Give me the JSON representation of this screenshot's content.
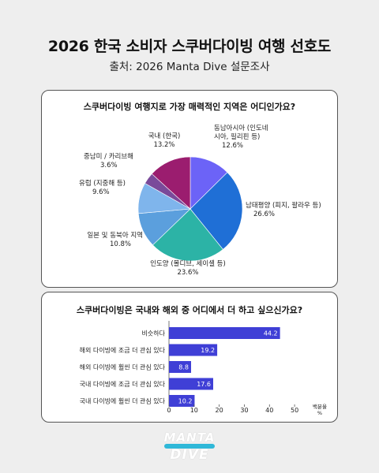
{
  "header": {
    "title": "2026 한국 소비자 스쿠버다이빙 여행 선호도",
    "subtitle": "출처: 2026 Manta Dive 설문조사"
  },
  "logo": {
    "top": "MANTA",
    "bottom": "DIVE"
  },
  "chart_data": [
    {
      "type": "pie",
      "title": "스쿠버다이빙 여행지로 가장 매력적인 지역은 어디인가요?",
      "slices": [
        {
          "label": "동남아시아 (인도네시아, 필리핀 등)",
          "display_label": [
            "동남아시아 (인도네",
            "시아, 필리핀 등)"
          ],
          "value": 12.6,
          "value_text": "12.6%",
          "color": "#6c63f7"
        },
        {
          "label": "남태평양 (피지, 팔라우 등)",
          "display_label": [
            "남태평양 (피지, 팔라우 등)"
          ],
          "value": 26.6,
          "value_text": "26.6%",
          "color": "#1f6fd6"
        },
        {
          "label": "인도양 (몰디브, 세이셸 등)",
          "display_label": [
            "인도양 (몰디브, 세이셸 등)"
          ],
          "value": 23.6,
          "value_text": "23.6%",
          "color": "#2cb3a6"
        },
        {
          "label": "일본 및 동북아 지역",
          "display_label": [
            "일본 및 동북아 지역"
          ],
          "value": 10.8,
          "value_text": "10.8%",
          "color": "#5b9fdd"
        },
        {
          "label": "유럽 (지중해 등)",
          "display_label": [
            "유럽 (지중해 등)"
          ],
          "value": 9.6,
          "value_text": "9.6%",
          "color": "#7fb5ec"
        },
        {
          "label": "중남미 / 카리브해",
          "display_label": [
            "중남미 / 카리브해"
          ],
          "value": 3.6,
          "value_text": "3.6%",
          "color": "#7a4a9a"
        },
        {
          "label": "국내 (한국)",
          "display_label": [
            "국내 (한국)"
          ],
          "value": 13.2,
          "value_text": "13.2%",
          "color": "#9b1d6f"
        }
      ]
    },
    {
      "type": "bar",
      "orientation": "horizontal",
      "title": "스쿠버다이빙은 국내와 해외 중 어디에서 더 하고 싶으신가요?",
      "categories": [
        "비슷하다",
        "해외 다이빙에 조금 더 관심 있다",
        "해외 다이빙에 훨씬 더 관심 있다",
        "국내 다이빙에 조금 더 관심 있다",
        "국내 다이빙에 훨씬 더 관심 있다"
      ],
      "values": [
        44.2,
        19.2,
        8.8,
        17.6,
        10.2
      ],
      "xlim": [
        0,
        55
      ],
      "xticks": [
        0,
        10,
        20,
        30,
        40,
        50
      ],
      "xlabel": [
        "백분율",
        "%"
      ],
      "bar_color": "#3f3fd6"
    }
  ]
}
